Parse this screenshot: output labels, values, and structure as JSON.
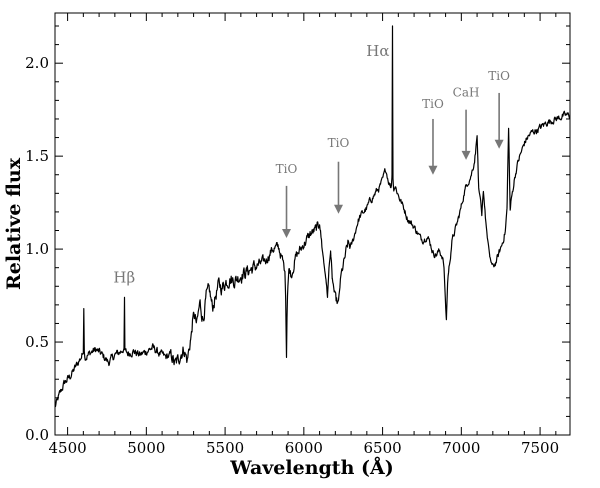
{
  "chart_data": {
    "type": "line",
    "title": "",
    "xlabel": "Wavelength (Å)",
    "ylabel": "Relative flux",
    "xlim": [
      4420,
      7690
    ],
    "ylim": [
      0.0,
      2.27
    ],
    "x_ticks": [
      4500,
      5000,
      5500,
      6000,
      6500,
      7000,
      7500
    ],
    "y_ticks": [
      0.0,
      0.5,
      1.0,
      1.5,
      2.0
    ],
    "x_tick_labels": [
      "4500",
      "5000",
      "5500",
      "6000",
      "6500",
      "7000",
      "7500"
    ],
    "y_tick_labels": [
      "0.0",
      "0.5",
      "1.0",
      "1.5",
      "2.0"
    ],
    "grid": false,
    "series": [
      {
        "color": "#000000",
        "x": [
          4420,
          4450,
          4480,
          4520,
          4560,
          4600,
          4603,
          4606,
          4610,
          4640,
          4680,
          4720,
          4760,
          4800,
          4840,
          4858,
          4861,
          4864,
          4880,
          4920,
          4960,
          5000,
          5040,
          5080,
          5120,
          5160,
          5180,
          5200,
          5220,
          5240,
          5260,
          5280,
          5300,
          5320,
          5340,
          5360,
          5380,
          5400,
          5420,
          5440,
          5460,
          5480,
          5500,
          5530,
          5560,
          5600,
          5640,
          5680,
          5720,
          5760,
          5800,
          5840,
          5870,
          5880,
          5885,
          5890,
          5893,
          5896,
          5900,
          5905,
          5910,
          5920,
          5950,
          5980,
          6010,
          6040,
          6070,
          6100,
          6120,
          6140,
          6150,
          6160,
          6170,
          6180,
          6200,
          6220,
          6230,
          6240,
          6260,
          6280,
          6300,
          6320,
          6340,
          6360,
          6380,
          6400,
          6420,
          6440,
          6460,
          6480,
          6500,
          6520,
          6540,
          6555,
          6560,
          6563,
          6566,
          6570,
          6580,
          6600,
          6620,
          6640,
          6660,
          6680,
          6700,
          6720,
          6740,
          6760,
          6780,
          6800,
          6820,
          6840,
          6860,
          6880,
          6890,
          6900,
          6905,
          6910,
          6915,
          6920,
          6930,
          6940,
          6960,
          6980,
          7000,
          7020,
          7040,
          7060,
          7080,
          7090,
          7100,
          7110,
          7120,
          7130,
          7140,
          7150,
          7160,
          7180,
          7200,
          7220,
          7240,
          7260,
          7280,
          7290,
          7300,
          7310,
          7320,
          7340,
          7360,
          7380,
          7400,
          7420,
          7450,
          7480,
          7510,
          7540,
          7570,
          7600,
          7630,
          7660,
          7690
        ],
        "y": [
          0.15,
          0.22,
          0.28,
          0.32,
          0.38,
          0.44,
          0.68,
          0.45,
          0.41,
          0.44,
          0.46,
          0.43,
          0.39,
          0.43,
          0.45,
          0.47,
          0.74,
          0.46,
          0.44,
          0.45,
          0.43,
          0.45,
          0.47,
          0.44,
          0.42,
          0.43,
          0.38,
          0.4,
          0.44,
          0.46,
          0.4,
          0.51,
          0.66,
          0.59,
          0.71,
          0.62,
          0.74,
          0.78,
          0.68,
          0.75,
          0.81,
          0.79,
          0.82,
          0.84,
          0.83,
          0.86,
          0.88,
          0.9,
          0.92,
          0.94,
          1.0,
          1.01,
          0.92,
          0.88,
          0.72,
          0.42,
          0.63,
          0.75,
          0.82,
          0.88,
          0.89,
          0.86,
          0.96,
          1.0,
          1.04,
          1.08,
          1.1,
          1.13,
          0.98,
          0.84,
          0.74,
          0.9,
          0.99,
          0.84,
          0.73,
          0.7,
          0.81,
          0.87,
          0.95,
          1.03,
          1.01,
          1.07,
          1.14,
          1.18,
          1.2,
          1.22,
          1.26,
          1.28,
          1.31,
          1.33,
          1.37,
          1.43,
          1.36,
          1.33,
          1.4,
          2.2,
          1.38,
          1.32,
          1.34,
          1.29,
          1.25,
          1.21,
          1.16,
          1.14,
          1.12,
          1.09,
          1.06,
          1.05,
          1.07,
          1.04,
          0.98,
          0.97,
          0.99,
          0.96,
          0.9,
          0.7,
          0.62,
          0.75,
          0.86,
          0.88,
          0.96,
          1.04,
          1.1,
          1.16,
          1.23,
          1.31,
          1.36,
          1.39,
          1.46,
          1.52,
          1.61,
          1.33,
          1.26,
          1.18,
          1.31,
          1.21,
          1.11,
          0.96,
          0.9,
          0.93,
          0.98,
          1.03,
          1.1,
          1.22,
          1.65,
          1.21,
          1.28,
          1.39,
          1.47,
          1.52,
          1.57,
          1.6,
          1.63,
          1.64,
          1.66,
          1.68,
          1.69,
          1.7,
          1.71,
          1.72,
          1.72
        ]
      }
    ],
    "annotations": [
      {
        "label": "Hβ",
        "x": 4860,
        "y": 0.82,
        "arrow": false
      },
      {
        "label": "TiO",
        "x": 5890,
        "y": 1.41,
        "arrow": true,
        "arrow_from": 1.34,
        "arrow_to": 1.06
      },
      {
        "label": "TiO",
        "x": 6220,
        "y": 1.55,
        "arrow": true,
        "arrow_from": 1.47,
        "arrow_to": 1.19
      },
      {
        "label": "Hα",
        "x": 6470,
        "y": 2.04,
        "arrow": false
      },
      {
        "label": "TiO",
        "x": 6820,
        "y": 1.76,
        "arrow": true,
        "arrow_from": 1.7,
        "arrow_to": 1.4
      },
      {
        "label": "CaH",
        "x": 7030,
        "y": 1.82,
        "arrow": true,
        "arrow_from": 1.75,
        "arrow_to": 1.48
      },
      {
        "label": "TiO",
        "x": 7240,
        "y": 1.91,
        "arrow": true,
        "arrow_from": 1.84,
        "arrow_to": 1.54
      }
    ],
    "colors": {
      "line": "#000000",
      "annotation": "#777777"
    }
  }
}
